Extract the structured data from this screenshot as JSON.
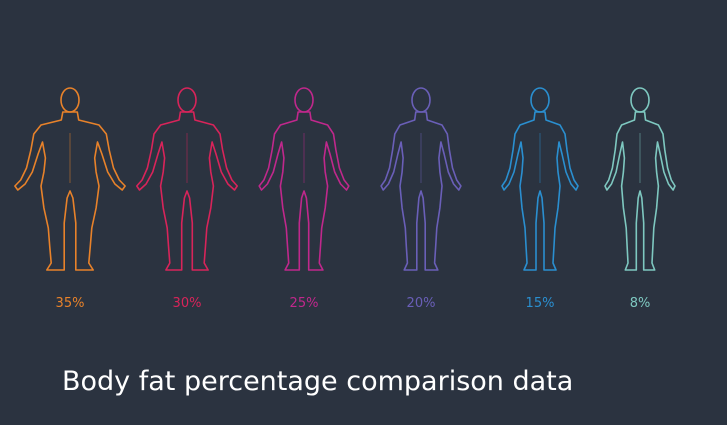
{
  "title": "Body fat percentage comparison data",
  "figures": [
    {
      "label": "35%",
      "color": "#e8822a"
    },
    {
      "label": "30%",
      "color": "#d8245a"
    },
    {
      "label": "25%",
      "color": "#c0288c"
    },
    {
      "label": "20%",
      "color": "#6a5fb8"
    },
    {
      "label": "15%",
      "color": "#2a8fd0"
    },
    {
      "label": "8%",
      "color": "#7ec8c0"
    }
  ]
}
